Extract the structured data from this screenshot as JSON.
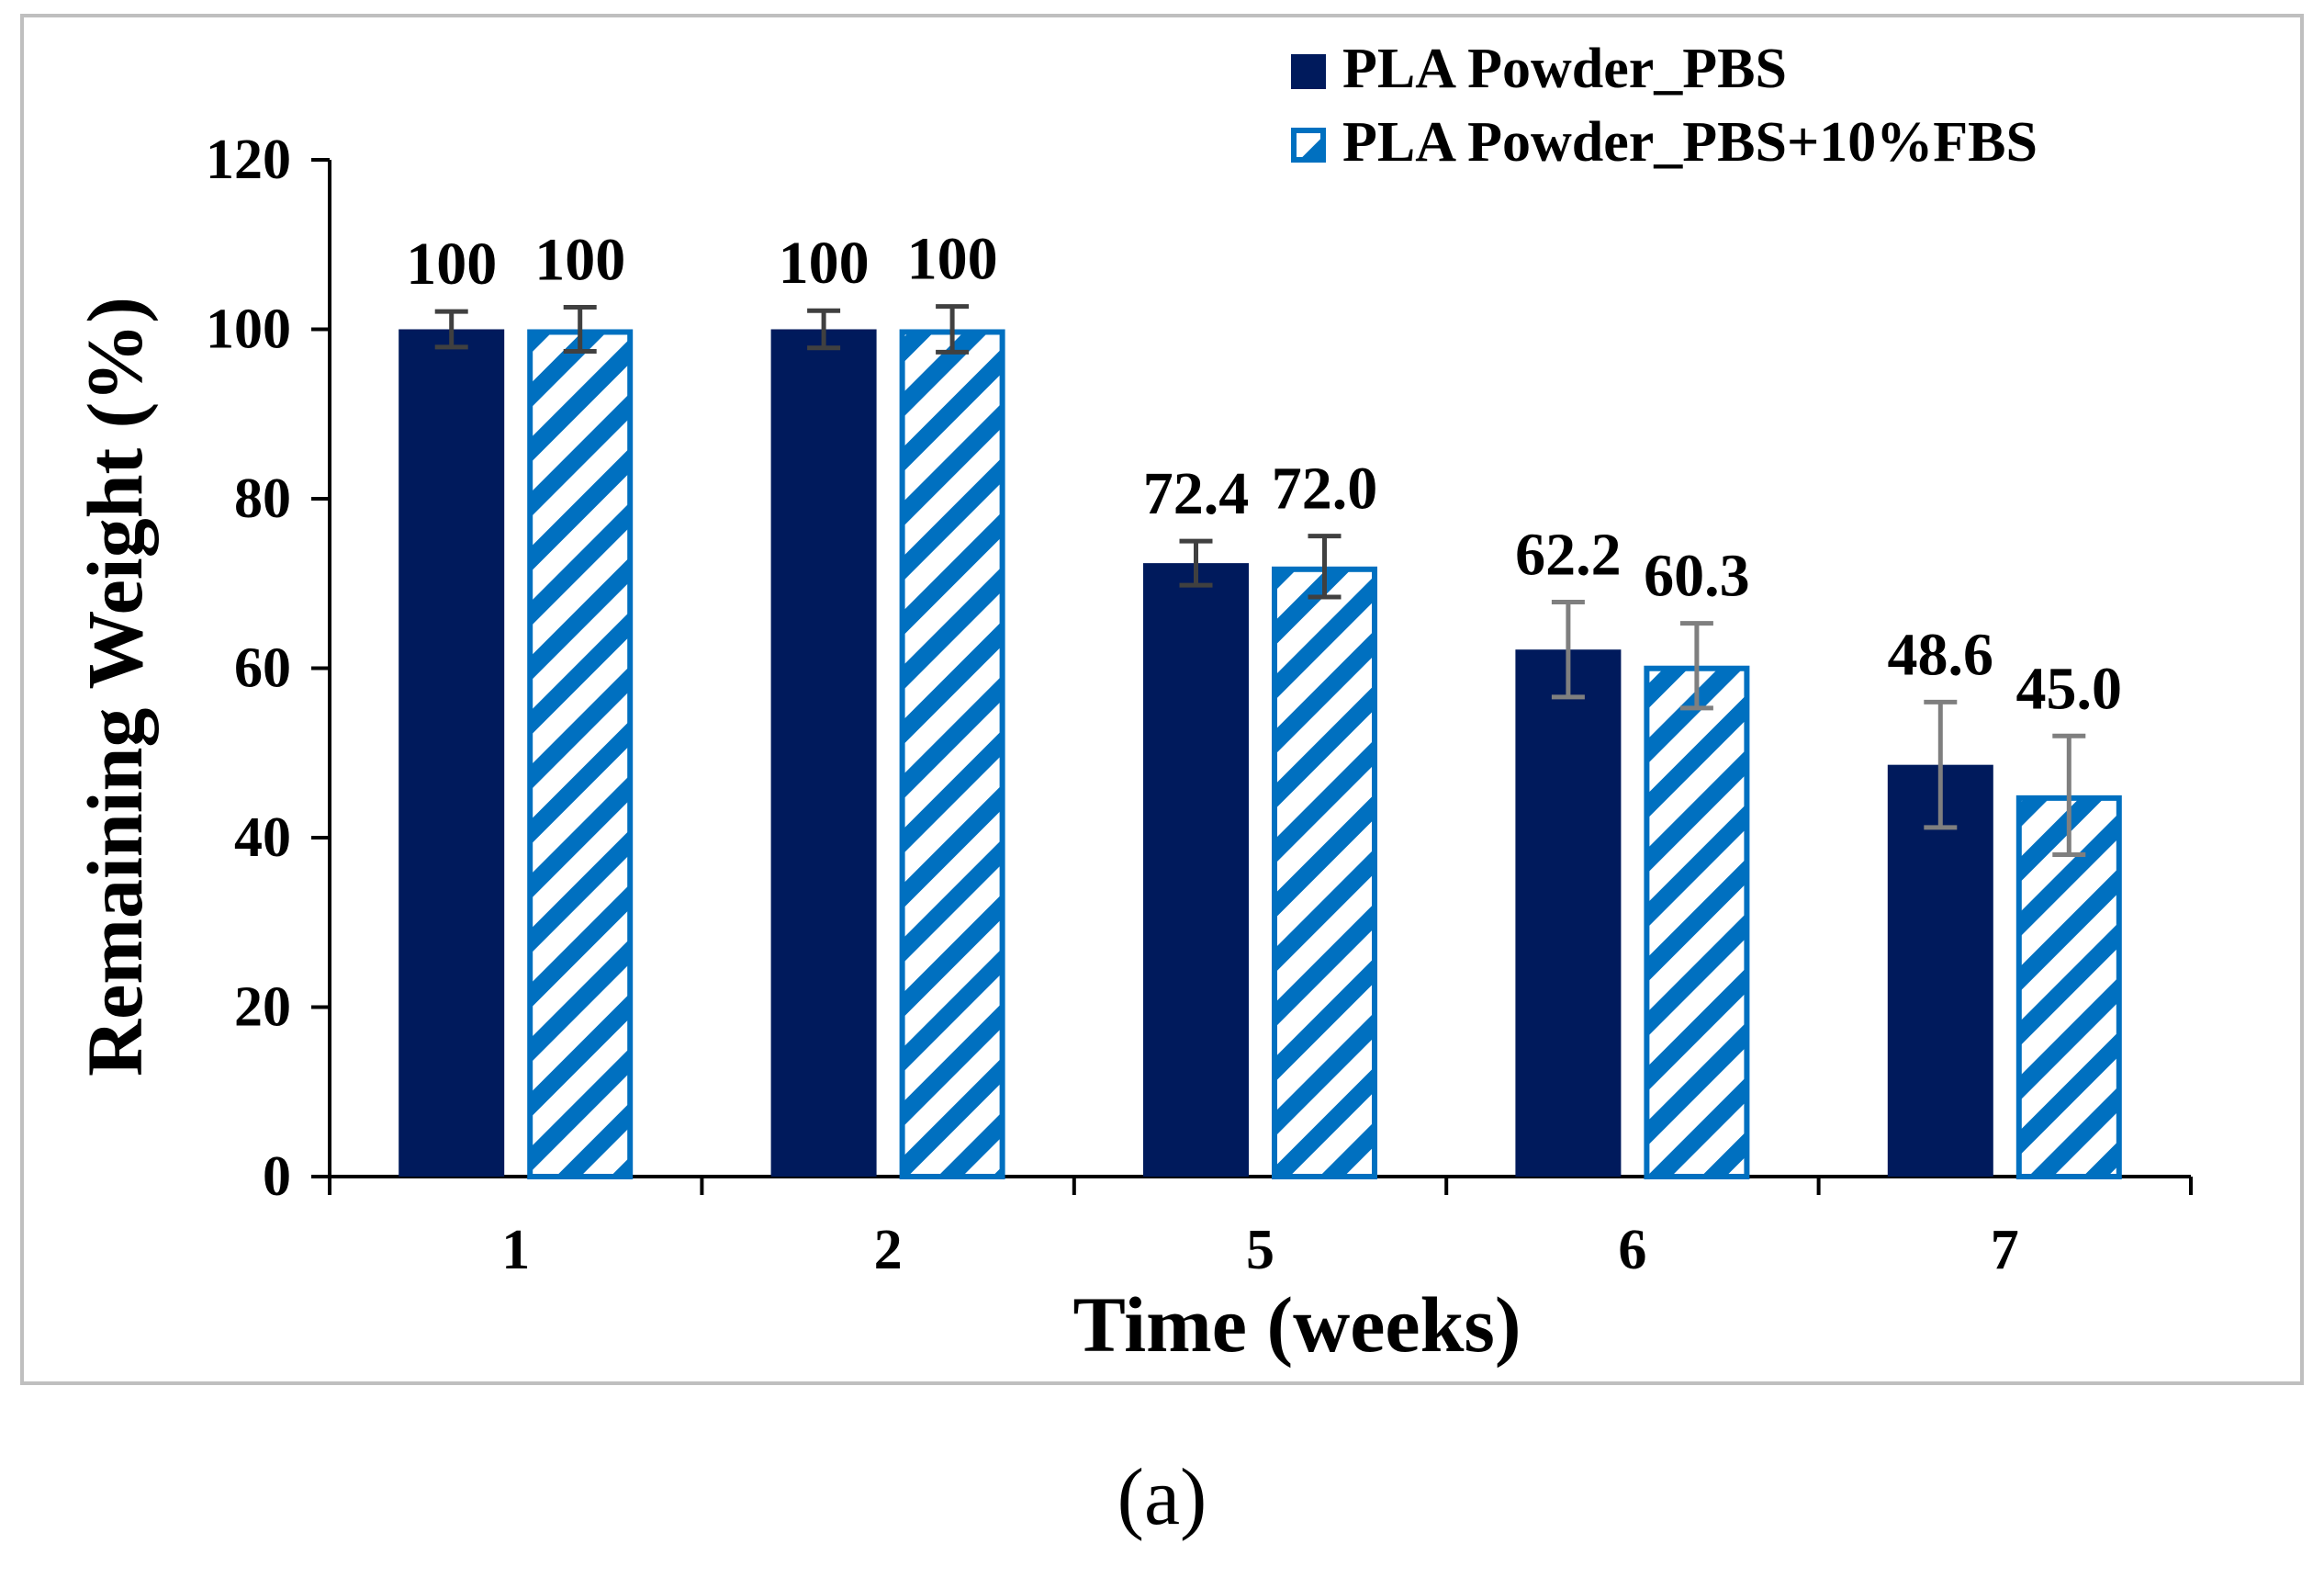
{
  "chart_data": {
    "type": "bar",
    "title": "",
    "xlabel": "Time (weeks)",
    "ylabel": "Remaining Weight (%)",
    "categories": [
      "1",
      "2",
      "5",
      "6",
      "7"
    ],
    "ylim": [
      0,
      120
    ],
    "yticks": [
      0,
      20,
      40,
      60,
      80,
      100,
      120
    ],
    "grid": false,
    "legend_position": "top-right",
    "series": [
      {
        "name": "PLA Powder_PBS",
        "color": "#001a5c",
        "pattern": "solid",
        "values": [
          100,
          100,
          72.4,
          62.2,
          48.6
        ],
        "labels": [
          "100",
          "100",
          "72.4",
          "62.2",
          "48.6"
        ],
        "errors": [
          2.1,
          2.2,
          2.6,
          5.6,
          7.4
        ]
      },
      {
        "name": "PLA Powder_PBS+10%FBS",
        "color": "#0070c0",
        "pattern": "diagonal-stripes",
        "values": [
          100,
          100,
          72.0,
          60.3,
          45.0
        ],
        "labels": [
          "100",
          "100",
          "72.0",
          "60.3",
          "45.0"
        ],
        "errors": [
          2.6,
          2.7,
          3.6,
          5.0,
          7.0
        ]
      }
    ]
  },
  "panel_label": "(a)"
}
